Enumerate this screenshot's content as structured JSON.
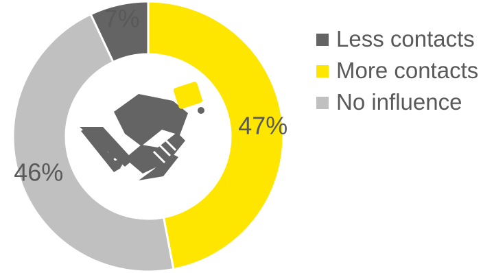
{
  "chart_data": {
    "type": "pie",
    "donut": true,
    "categories": [
      "Less contacts",
      "More contacts",
      "No influence"
    ],
    "values": [
      7,
      47,
      46
    ],
    "value_labels": [
      "7%",
      "47%",
      "46%"
    ],
    "colors": [
      "#646464",
      "#FFE600",
      "#C0C0C0"
    ],
    "legend_position": "right",
    "center_icon": "handshake-icon",
    "label_color": "#595959"
  },
  "legend": [
    {
      "label": "Less contacts",
      "color": "#646464"
    },
    {
      "label": "More contacts",
      "color": "#FFE600"
    },
    {
      "label": "No influence",
      "color": "#C0C0C0"
    }
  ]
}
